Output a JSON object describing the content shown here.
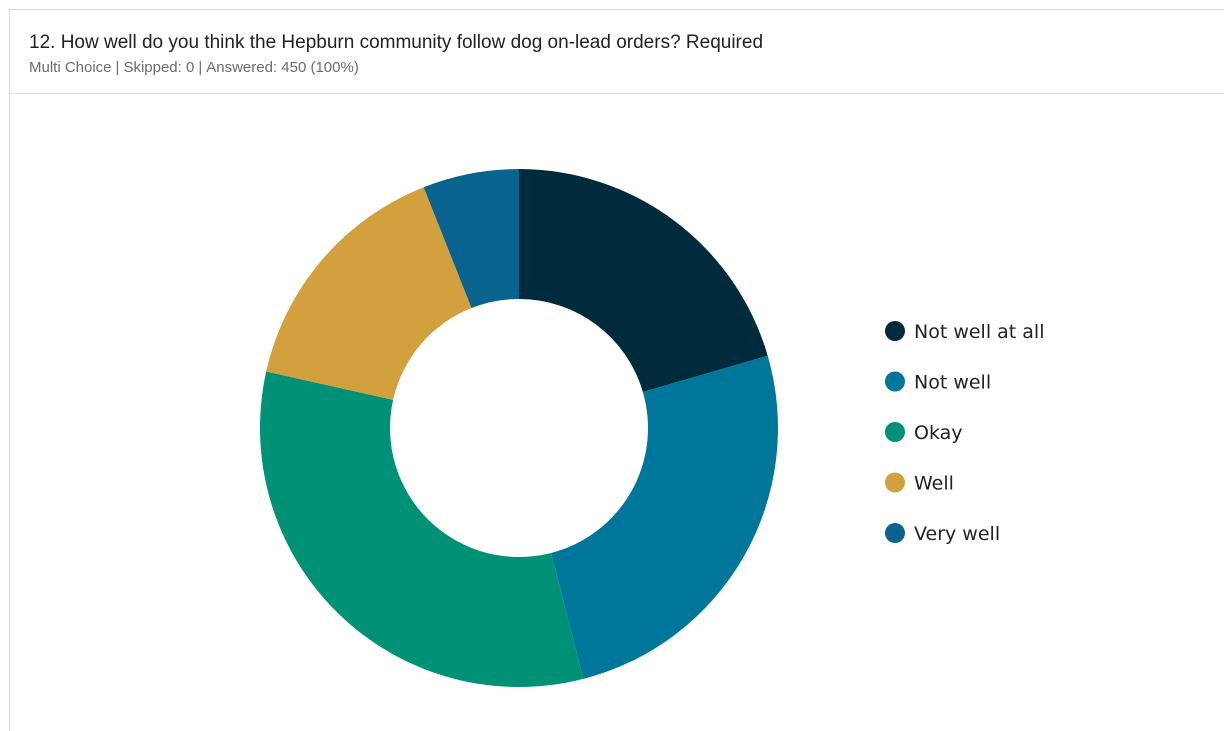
{
  "header": {
    "title": "12. How well do you think the Hepburn community follow dog on-lead orders? Required",
    "meta": {
      "type": "Multi Choice",
      "skipped": "Skipped: 0",
      "answered": "Answered: 450 (100%)"
    }
  },
  "chart_data": {
    "type": "pie",
    "donut": true,
    "legend_position": "right",
    "categories": [
      "Not well at all",
      "Not well",
      "Okay",
      "Well",
      "Very well"
    ],
    "values": [
      20.5,
      25.5,
      32.5,
      15.5,
      6
    ],
    "colors": [
      "#002b3d",
      "#00769a",
      "#009177",
      "#d3a03e",
      "#08638f"
    ]
  }
}
